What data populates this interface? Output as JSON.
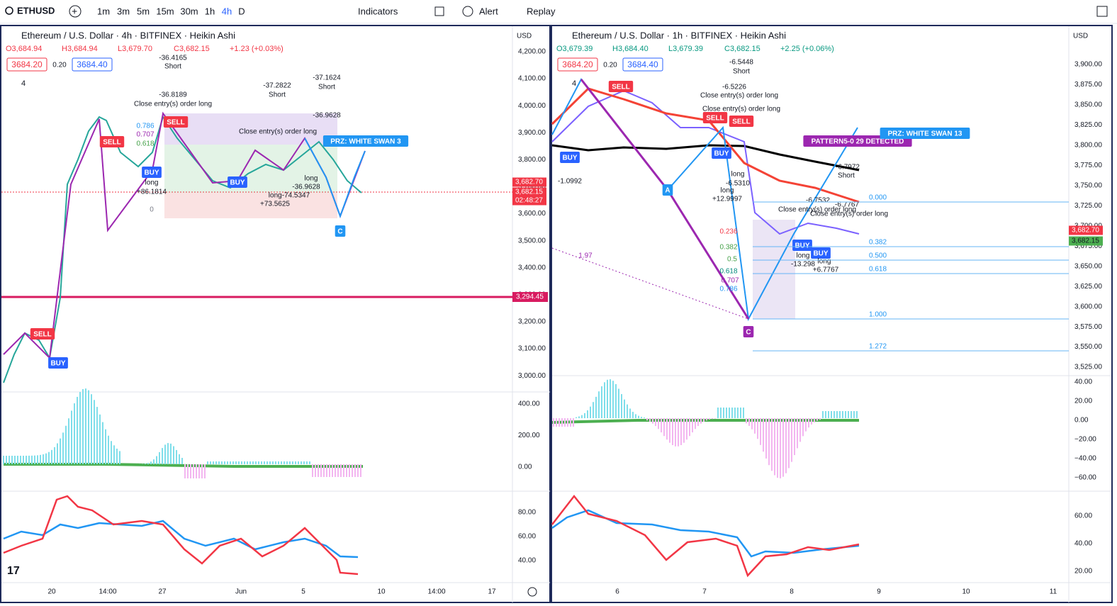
{
  "toolbar": {
    "symbol": "ETHUSD",
    "intervals": [
      "1m",
      "3m",
      "5m",
      "15m",
      "30m",
      "1h",
      "4h",
      "D"
    ],
    "indicators": "Indicators",
    "alert": "Alert",
    "replay": "Replay"
  },
  "left_pane": {
    "title": "Ethereum / U.S. Dollar · 4h · BITFINEX · Heikin Ashi",
    "ohlc": [
      "O3,684.94",
      "H3,684.94",
      "L3,679.70",
      "C3,682.15",
      "+1.23 (+0.03%)"
    ],
    "bid": "3684.20",
    "spread": "0.20",
    "ask": "3684.40",
    "indicator_count": "4",
    "currency": "USD",
    "price_axis": [
      "4,200.00",
      "4,100.00",
      "4,000.00",
      "3,900.00",
      "3,800.00",
      "3,700.00",
      "3,600.00",
      "3,500.00",
      "3,400.00",
      "3,300.00",
      "3,200.00",
      "3,100.00",
      "3,000.00"
    ],
    "osc_axis": [
      "400.00",
      "200.00",
      "0.00"
    ],
    "rsi_axis": [
      "80.00",
      "60.00",
      "40.00"
    ],
    "time_axis": [
      "20",
      "14:00",
      "27",
      "Jun",
      "5",
      "10",
      "14:00",
      "17"
    ],
    "price_tags": [
      "3,682.70",
      "3,682.15",
      "02:48:27"
    ],
    "level_tag": "3,294.45",
    "annotations": [
      "-36.4165",
      "Short",
      "-36.8189",
      "Close entry(s) order long",
      "SELL",
      "SELL",
      "SELL",
      "BUY",
      "BUY",
      "BUY",
      "long",
      "+86.1814",
      "0.786",
      "0.707",
      "0.618",
      "0",
      "-37.2822",
      "Short",
      "-37.1624",
      "Short",
      "-36.9628",
      "Close entry(s) order long",
      "PRZ: WHITE SWAN 3",
      "C",
      "long",
      "-36.9628",
      "long-74.5347",
      "+73.5625"
    ]
  },
  "right_pane": {
    "title": "Ethereum / U.S. Dollar · 1h · BITFINEX · Heikin Ashi",
    "ohlc": [
      "O3,679.39",
      "H3,684.40",
      "L3,679.39",
      "C3,682.15",
      "+2.25 (+0.06%)"
    ],
    "bid": "3684.20",
    "spread": "0.20",
    "ask": "3684.40",
    "indicator_count": "4",
    "currency": "USD",
    "price_axis": [
      "3,900.00",
      "3,875.00",
      "3,850.00",
      "3,825.00",
      "3,800.00",
      "3,775.00",
      "3,750.00",
      "3,725.00",
      "3,700.00",
      "3,675.00",
      "3,650.00",
      "3,625.00",
      "3,600.00",
      "3,575.00",
      "3,550.00",
      "3,525.00"
    ],
    "osc_axis": [
      "40.00",
      "20.00",
      "0.00",
      "−20.00",
      "−40.00",
      "−60.00"
    ],
    "rsi_axis": [
      "60.00",
      "40.00",
      "20.00"
    ],
    "time_axis": [
      "6",
      "7",
      "8",
      "9",
      "10",
      "11"
    ],
    "price_tags": [
      "3,682.70",
      "3,682.15"
    ],
    "fib_levels": [
      "0.000",
      "0.382",
      "0.500",
      "0.618",
      "1.000",
      "1.272"
    ],
    "annotations": [
      "-6.5448",
      "Short",
      "-6.5226",
      "Close entry(s) order long",
      "Close entry(s) order long",
      "SELL",
      "SELL",
      "SELL",
      "BUY",
      "BUY",
      "BUY",
      "BUY",
      "A",
      "C",
      "PATTERN5-0 29 DETECTED",
      "PRZ: WHITE SWAN 13",
      "long",
      "-6.5310",
      "long",
      "+12.9997",
      "-6.7972",
      "Short",
      "-6.7532",
      "-6.7767",
      "Close entry(s) order long",
      "Close entry(s) order long",
      "long",
      "-13.298",
      "long",
      "+6.7767",
      "0.236",
      "0.382",
      "0.5",
      "0.618",
      "0.707",
      "0.786",
      "1.97",
      "-1.0992"
    ]
  }
}
